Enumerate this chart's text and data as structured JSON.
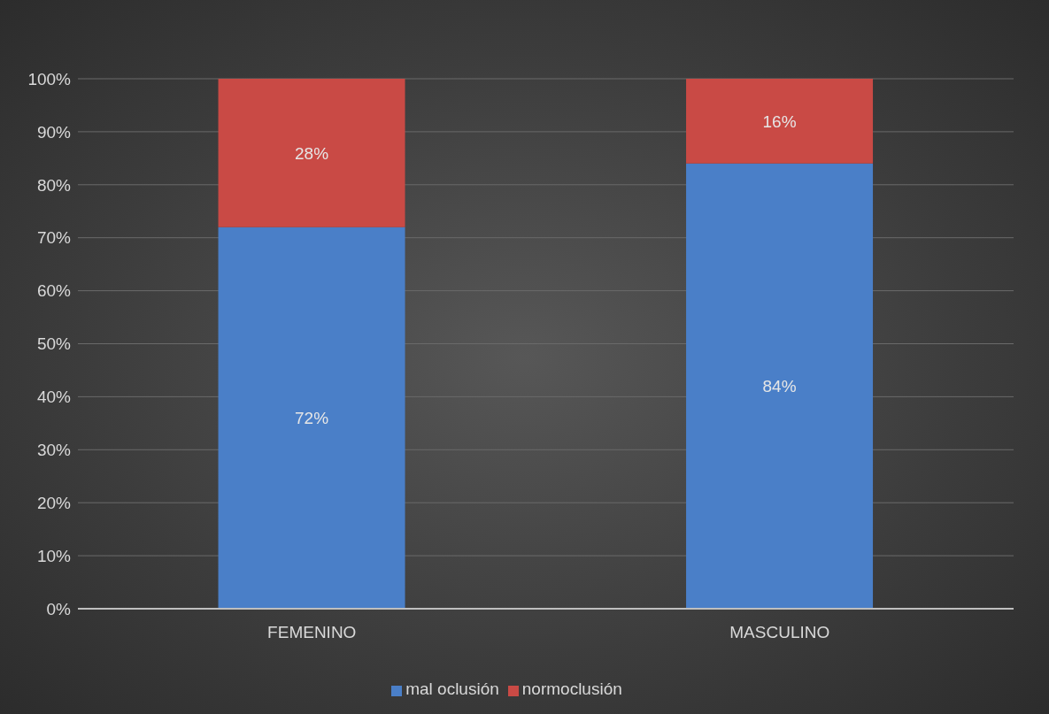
{
  "chart_data": {
    "type": "bar",
    "stacked": true,
    "categories": [
      "FEMENINO",
      "MASCULINO"
    ],
    "series": [
      {
        "name": "mal oclusión",
        "color": "#4a7fc8",
        "values": [
          72,
          84
        ],
        "value_labels": [
          "72%",
          "84%"
        ]
      },
      {
        "name": "normoclusión",
        "color": "#c94a45",
        "values": [
          28,
          16
        ],
        "value_labels": [
          "28%",
          "16%"
        ]
      }
    ],
    "ylim": [
      0,
      100
    ],
    "yticks": [
      {
        "value": 0,
        "label": "0%"
      },
      {
        "value": 10,
        "label": "10%"
      },
      {
        "value": 20,
        "label": "20%"
      },
      {
        "value": 30,
        "label": "30%"
      },
      {
        "value": 40,
        "label": "40%"
      },
      {
        "value": 50,
        "label": "50%"
      },
      {
        "value": 60,
        "label": "60%"
      },
      {
        "value": 70,
        "label": "70%"
      },
      {
        "value": 80,
        "label": "80%"
      },
      {
        "value": 90,
        "label": "90%"
      },
      {
        "value": 100,
        "label": "100%"
      }
    ],
    "grid": "y",
    "legend": "bottom"
  }
}
